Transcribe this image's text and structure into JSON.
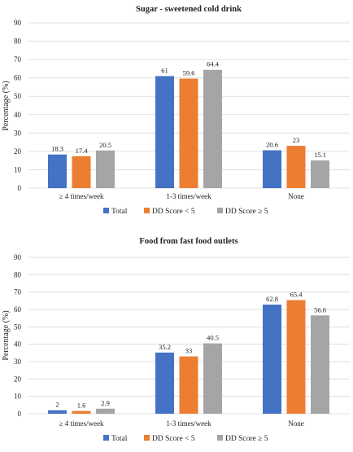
{
  "chart_data": [
    {
      "type": "bar",
      "title": "Sugar - sweetened cold drink",
      "xlabel": "",
      "ylabel": "Percentage (%)",
      "ylim": [
        0,
        90
      ],
      "yticks": [
        0,
        10,
        20,
        30,
        40,
        50,
        60,
        70,
        80,
        90
      ],
      "grid": true,
      "legend_position": "bottom",
      "categories": [
        "≥ 4 times/week",
        "1-3 times/week",
        "None"
      ],
      "series": [
        {
          "name": "Total",
          "color": "#4472c4",
          "values": [
            18.3,
            61,
            20.6
          ]
        },
        {
          "name": "DD Score < 5",
          "color": "#ed7d31",
          "values": [
            17.4,
            59.6,
            23
          ]
        },
        {
          "name": "DD Score ≥ 5",
          "color": "#a5a5a5",
          "values": [
            20.5,
            64.4,
            15.1
          ]
        }
      ]
    },
    {
      "type": "bar",
      "title": "Food from fast food outlets",
      "xlabel": "",
      "ylabel": "Percentage (%)",
      "ylim": [
        0,
        90
      ],
      "yticks": [
        0,
        10,
        20,
        30,
        40,
        50,
        60,
        70,
        80,
        90
      ],
      "grid": true,
      "legend_position": "bottom",
      "categories": [
        "≥ 4 times/week",
        "1-3 times/week",
        "None"
      ],
      "series": [
        {
          "name": "Total",
          "color": "#4472c4",
          "values": [
            2,
            35.2,
            62.8
          ]
        },
        {
          "name": "DD Score < 5",
          "color": "#ed7d31",
          "values": [
            1.6,
            33,
            65.4
          ]
        },
        {
          "name": "DD Score ≥ 5",
          "color": "#a5a5a5",
          "values": [
            2.9,
            40.5,
            56.6
          ]
        }
      ]
    }
  ]
}
